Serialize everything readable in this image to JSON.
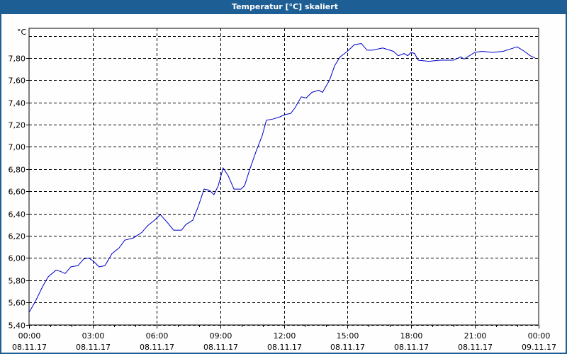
{
  "window": {
    "title": "Temperatur [°C] skaliert"
  },
  "chart_data": {
    "type": "line",
    "title": "Temperatur [°C] skaliert",
    "xlabel": "",
    "ylabel": "°C",
    "y_unit_label": "°C",
    "ylim": [
      5.4,
      8.0
    ],
    "xlim_hours": [
      0,
      24
    ],
    "grid": true,
    "line_color": "#0000cc",
    "y_ticks": [
      "5,40",
      "5,60",
      "5,80",
      "6,00",
      "6,20",
      "6,40",
      "6,60",
      "6,80",
      "7,00",
      "7,20",
      "7,40",
      "7,60",
      "7,80"
    ],
    "y_tick_values": [
      5.4,
      5.6,
      5.8,
      6.0,
      6.2,
      6.4,
      6.6,
      6.8,
      7.0,
      7.2,
      7.4,
      7.6,
      7.8
    ],
    "x_ticks": [
      {
        "time": "00:00",
        "date": "08.11.17",
        "hour": 0
      },
      {
        "time": "03:00",
        "date": "08.11.17",
        "hour": 3
      },
      {
        "time": "06:00",
        "date": "08.11.17",
        "hour": 6
      },
      {
        "time": "09:00",
        "date": "08.11.17",
        "hour": 9
      },
      {
        "time": "12:00",
        "date": "08.11.17",
        "hour": 12
      },
      {
        "time": "15:00",
        "date": "08.11.17",
        "hour": 15
      },
      {
        "time": "18:00",
        "date": "08.11.17",
        "hour": 18
      },
      {
        "time": "21:00",
        "date": "08.11.17",
        "hour": 21
      },
      {
        "time": "00:00",
        "date": "09.11.17",
        "hour": 24
      }
    ],
    "series": [
      {
        "name": "Temperatur",
        "x_hours": [
          0.0,
          0.3,
          0.63,
          0.9,
          1.27,
          1.47,
          1.7,
          1.97,
          2.3,
          2.57,
          2.8,
          3.04,
          3.3,
          3.57,
          3.91,
          4.24,
          4.51,
          4.91,
          5.31,
          5.58,
          5.91,
          6.18,
          6.51,
          6.81,
          7.18,
          7.38,
          7.71,
          7.98,
          8.24,
          8.48,
          8.71,
          8.91,
          9.14,
          9.38,
          9.65,
          9.98,
          10.15,
          10.38,
          10.71,
          10.98,
          11.18,
          11.48,
          11.81,
          12.05,
          12.32,
          12.52,
          12.82,
          13.05,
          13.32,
          13.65,
          13.82,
          14.15,
          14.39,
          14.65,
          14.99,
          15.32,
          15.65,
          15.92,
          16.16,
          16.66,
          17.16,
          17.39,
          17.66,
          17.83,
          17.99,
          18.16,
          18.33,
          18.83,
          19.33,
          19.99,
          20.33,
          20.49,
          20.99,
          21.33,
          21.83,
          22.33,
          22.66,
          22.99,
          23.33,
          23.6,
          23.83
        ],
        "values": [
          5.51,
          5.61,
          5.74,
          5.83,
          5.89,
          5.88,
          5.86,
          5.92,
          5.93,
          5.99,
          6.0,
          5.97,
          5.92,
          5.93,
          6.04,
          6.09,
          6.16,
          6.18,
          6.23,
          6.29,
          6.34,
          6.39,
          6.32,
          6.25,
          6.25,
          6.3,
          6.34,
          6.47,
          6.62,
          6.61,
          6.57,
          6.65,
          6.81,
          6.74,
          6.62,
          6.62,
          6.65,
          6.79,
          6.97,
          7.1,
          7.24,
          7.25,
          7.27,
          7.29,
          7.3,
          7.35,
          7.45,
          7.44,
          7.49,
          7.51,
          7.49,
          7.6,
          7.73,
          7.81,
          7.86,
          7.92,
          7.93,
          7.87,
          7.87,
          7.89,
          7.86,
          7.82,
          7.84,
          7.82,
          7.85,
          7.84,
          7.78,
          7.77,
          7.78,
          7.78,
          7.81,
          7.79,
          7.85,
          7.86,
          7.85,
          7.86,
          7.88,
          7.9,
          7.86,
          7.82,
          7.8
        ]
      }
    ]
  }
}
